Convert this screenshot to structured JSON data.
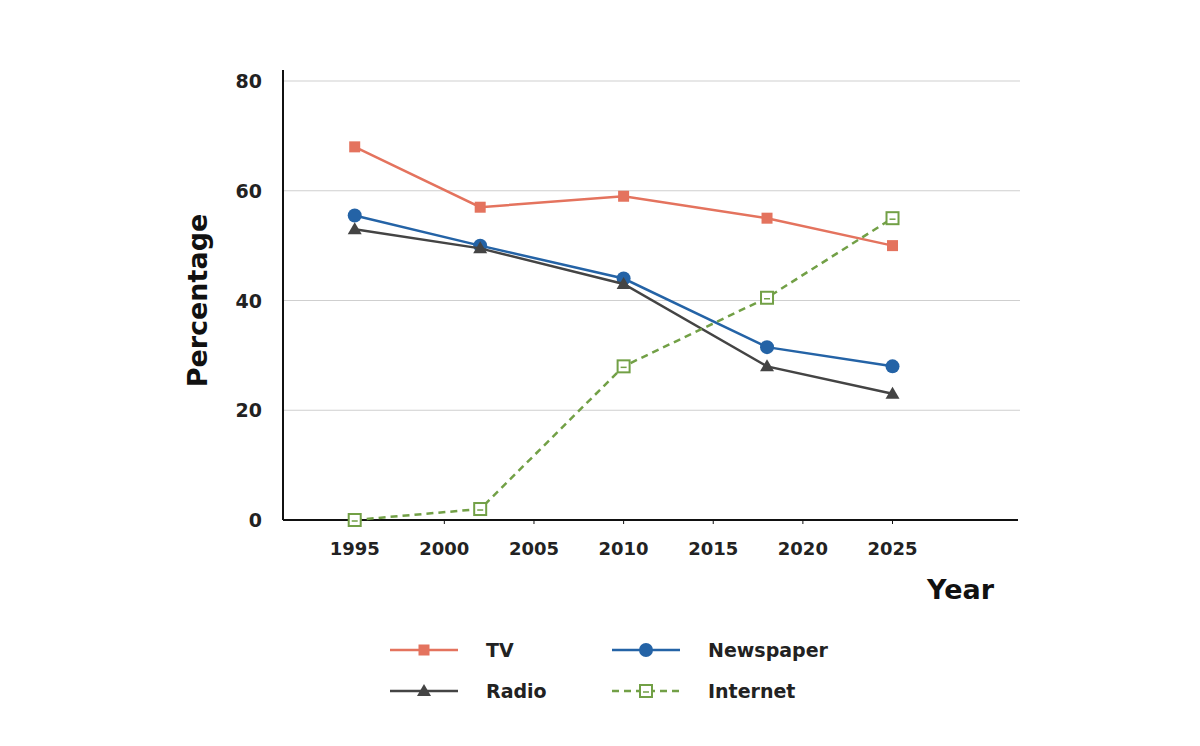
{
  "chart_data": {
    "type": "line",
    "x_label": "Year",
    "y_label": "Percentage",
    "x": [
      1995,
      2002,
      2010,
      2018,
      2025
    ],
    "series": [
      {
        "name": "TV",
        "color": "#e4735e",
        "marker": "square",
        "line_style": "solid",
        "values": [
          68,
          57,
          59,
          55,
          50
        ]
      },
      {
        "name": "Newspaper",
        "color": "#2463a6",
        "marker": "circle",
        "line_style": "solid",
        "values": [
          55.5,
          50,
          44,
          31.5,
          28
        ]
      },
      {
        "name": "Radio",
        "color": "#444444",
        "marker": "triangle",
        "line_style": "solid",
        "values": [
          53,
          49.5,
          43,
          28,
          23
        ]
      },
      {
        "name": "Internet",
        "color": "#72a046",
        "marker": "square-open",
        "line_style": "dashed",
        "values": [
          0,
          2,
          28,
          40.5,
          55
        ]
      }
    ],
    "xlim": [
      1991,
      2032
    ],
    "xticks": [
      1995,
      2000,
      2005,
      2010,
      2015,
      2020,
      2025
    ],
    "ylim": [
      0,
      80
    ],
    "yticks": [
      0,
      20,
      40,
      60,
      80
    ],
    "grid": true,
    "legend": "bottom"
  }
}
